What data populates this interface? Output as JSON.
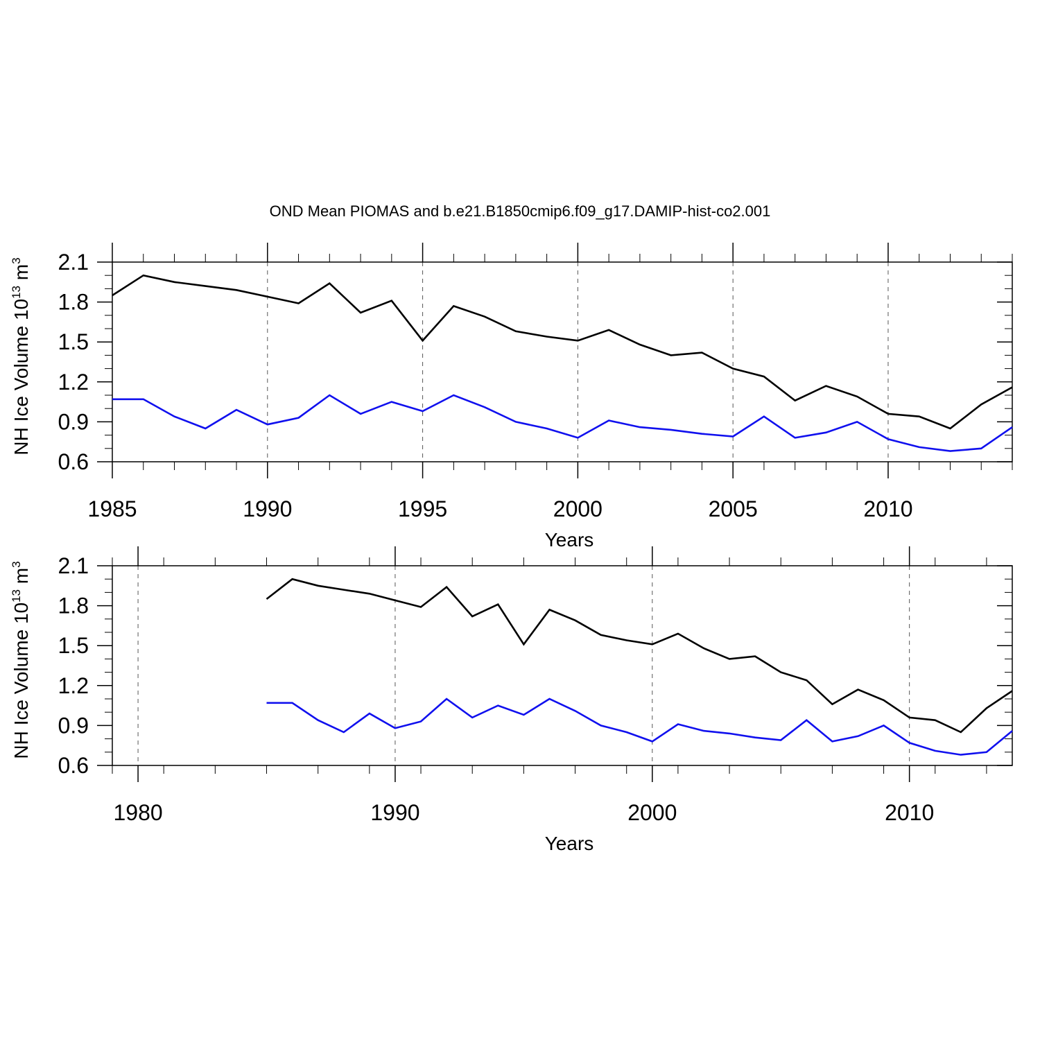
{
  "title": "OND Mean PIOMAS and b.e21.B1850cmip6.f09_g17.DAMIP-hist-co2.001",
  "colors": {
    "series_black": "#000000",
    "series_blue": "#1010ee",
    "axis": "#000000",
    "grid": "#555555"
  },
  "chart_data": [
    {
      "type": "line",
      "xlabel": "Years",
      "ylabel": {
        "main": "NH Ice Volume 10",
        "exp": "13",
        "unit": " m",
        "unit_exp": "3"
      },
      "xlim": [
        1985,
        2014
      ],
      "ylim": [
        0.6,
        2.1
      ],
      "xticks": [
        1985,
        1990,
        1995,
        2000,
        2005,
        2010
      ],
      "xtick_labels": [
        "1985",
        "1990",
        "1995",
        "2000",
        "2005",
        "2010"
      ],
      "yticks": [
        0.6,
        0.9,
        1.2,
        1.5,
        1.8,
        2.1
      ],
      "ytick_labels": [
        "0.6",
        "0.9",
        "1.2",
        "1.5",
        "1.8",
        "2.1"
      ],
      "grid": "dashed vertical at major x ticks",
      "x": [
        1985,
        1986,
        1987,
        1988,
        1989,
        1990,
        1991,
        1992,
        1993,
        1994,
        1995,
        1996,
        1997,
        1998,
        1999,
        2000,
        2001,
        2002,
        2003,
        2004,
        2005,
        2006,
        2007,
        2008,
        2009,
        2010,
        2011,
        2012,
        2013,
        2014
      ],
      "series": [
        {
          "color": "#000000",
          "values": [
            1.85,
            2.0,
            1.95,
            1.92,
            1.89,
            1.84,
            1.79,
            1.94,
            1.72,
            1.81,
            1.51,
            1.77,
            1.69,
            1.58,
            1.54,
            1.51,
            1.59,
            1.48,
            1.4,
            1.42,
            1.3,
            1.24,
            1.06,
            1.17,
            1.09,
            0.96,
            0.94,
            0.85,
            1.03,
            1.16
          ]
        },
        {
          "color": "#1010ee",
          "values": [
            1.07,
            1.07,
            0.94,
            0.85,
            0.99,
            0.88,
            0.93,
            1.1,
            0.96,
            1.05,
            0.98,
            1.1,
            1.01,
            0.9,
            0.85,
            0.78,
            0.91,
            0.86,
            0.84,
            0.81,
            0.79,
            0.94,
            0.78,
            0.82,
            0.9,
            0.77,
            0.71,
            0.68,
            0.7,
            0.86
          ]
        }
      ]
    },
    {
      "type": "line",
      "xlabel": "Years",
      "ylabel": {
        "main": "NH Ice Volume 10",
        "exp": "13",
        "unit": " m",
        "unit_exp": "3"
      },
      "xlim": [
        1979,
        2014
      ],
      "ylim": [
        0.6,
        2.1
      ],
      "xticks": [
        1980,
        1990,
        2000,
        2010
      ],
      "xtick_labels": [
        "1980",
        "1990",
        "2000",
        "2010"
      ],
      "yticks": [
        0.6,
        0.9,
        1.2,
        1.5,
        1.8,
        2.1
      ],
      "ytick_labels": [
        "0.6",
        "0.9",
        "1.2",
        "1.5",
        "1.8",
        "2.1"
      ],
      "grid": "dashed vertical at major x ticks",
      "x": [
        1985,
        1986,
        1987,
        1988,
        1989,
        1990,
        1991,
        1992,
        1993,
        1994,
        1995,
        1996,
        1997,
        1998,
        1999,
        2000,
        2001,
        2002,
        2003,
        2004,
        2005,
        2006,
        2007,
        2008,
        2009,
        2010,
        2011,
        2012,
        2013,
        2014
      ],
      "series": [
        {
          "color": "#000000",
          "values": [
            1.85,
            2.0,
            1.95,
            1.92,
            1.89,
            1.84,
            1.79,
            1.94,
            1.72,
            1.81,
            1.51,
            1.77,
            1.69,
            1.58,
            1.54,
            1.51,
            1.59,
            1.48,
            1.4,
            1.42,
            1.3,
            1.24,
            1.06,
            1.17,
            1.09,
            0.96,
            0.94,
            0.85,
            1.03,
            1.16
          ]
        },
        {
          "color": "#1010ee",
          "values": [
            1.07,
            1.07,
            0.94,
            0.85,
            0.99,
            0.88,
            0.93,
            1.1,
            0.96,
            1.05,
            0.98,
            1.1,
            1.01,
            0.9,
            0.85,
            0.78,
            0.91,
            0.86,
            0.84,
            0.81,
            0.79,
            0.94,
            0.78,
            0.82,
            0.9,
            0.77,
            0.71,
            0.68,
            0.7,
            0.86
          ]
        }
      ]
    }
  ]
}
